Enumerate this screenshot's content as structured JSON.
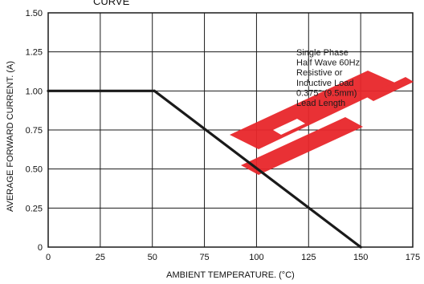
{
  "chart_data": {
    "type": "line",
    "title_fragment": "CURVE",
    "xlabel": "AMBIENT TEMPERATURE. (°C)",
    "ylabel": "AVERAGE FORWARD CURRENT. (A)",
    "xlim": [
      0,
      175
    ],
    "ylim": [
      0,
      1.5
    ],
    "x_ticks": [
      "0",
      "25",
      "50",
      "75",
      "100",
      "125",
      "150",
      "175"
    ],
    "y_ticks": [
      "0",
      "0.25",
      "0.50",
      "0.75",
      "1.00",
      "1.25",
      "1.50"
    ],
    "grid": true,
    "series": [
      {
        "x": [
          0,
          51,
          150
        ],
        "y": [
          1.0,
          1.0,
          0.0
        ]
      }
    ],
    "annotation_lines": [
      "Single Phase",
      "Half Wave 60Hz",
      "Resistive or",
      "Inductive Load",
      "0.375\" (9.5mm)",
      "Lead Length"
    ],
    "colors": {
      "line": "#1a1a1a",
      "grid": "#1a1a1a",
      "watermark": "#e8262b"
    }
  }
}
